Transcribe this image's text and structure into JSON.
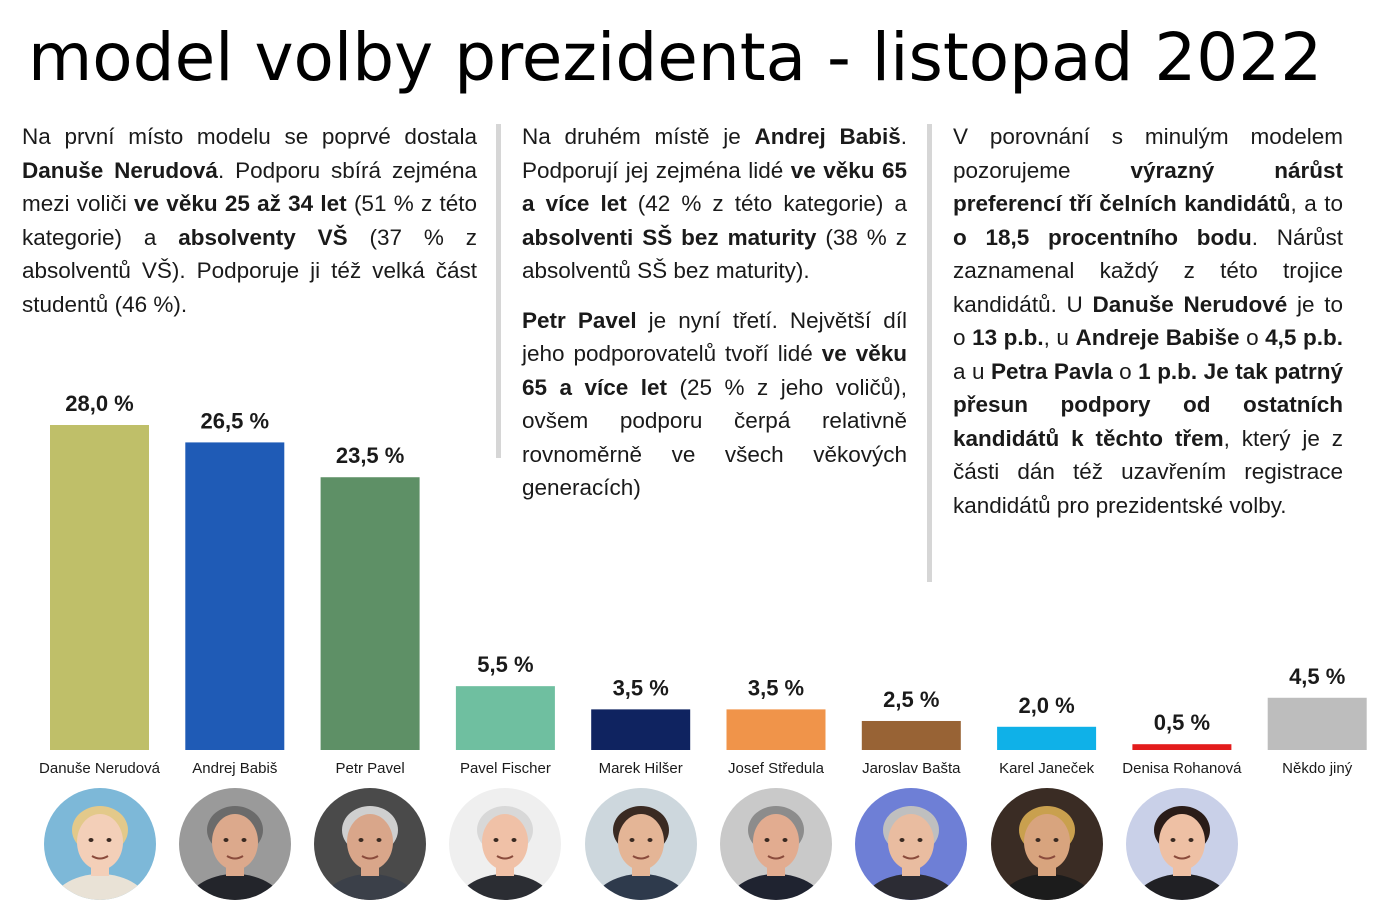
{
  "title": "model volby prezidenta - listopad 2022",
  "columns": [
    {
      "paragraphs": [
        [
          {
            "t": "Na první místo modelu se poprvé dostala ",
            "b": false
          },
          {
            "t": "Danuše Nerudová",
            "b": true
          },
          {
            "t": ". Podporu sbírá zejména mezi voliči ",
            "b": false
          },
          {
            "t": "ve věku 25 až 34 let",
            "b": true
          },
          {
            "t": " (51 % z této kategorie) a ",
            "b": false
          },
          {
            "t": "absolventy VŠ",
            "b": true
          },
          {
            "t": " (37 % z absolventů VŠ). Podporuje ji též velká část studentů (46 %).",
            "b": false
          }
        ]
      ]
    },
    {
      "paragraphs": [
        [
          {
            "t": "Na druhém místě je ",
            "b": false
          },
          {
            "t": "Andrej Babiš",
            "b": true
          },
          {
            "t": ". Podporují jej zejména lidé ",
            "b": false
          },
          {
            "t": "ve věku 65 a více let",
            "b": true
          },
          {
            "t": " (42 % z této kategorie) a ",
            "b": false
          },
          {
            "t": "absolventi SŠ bez maturity",
            "b": true
          },
          {
            "t": " (38 % z absolventů SŠ bez maturity).",
            "b": false
          }
        ],
        [
          {
            "t": "Petr Pavel",
            "b": true
          },
          {
            "t": " je nyní třetí. Největší díl jeho podporovatelů tvoří lidé ",
            "b": false
          },
          {
            "t": "ve věku 65 a více let",
            "b": true
          },
          {
            "t": " (25 % z jeho voličů), ovšem podporu čerpá relativně rovnoměrně ve všech věkových generacích)",
            "b": false
          }
        ]
      ]
    },
    {
      "paragraphs": [
        [
          {
            "t": "V porovnání s minulým modelem pozorujeme ",
            "b": false
          },
          {
            "t": "výrazný nárůst preferencí tří čelních kandidátů",
            "b": true
          },
          {
            "t": ", a to ",
            "b": false
          },
          {
            "t": "o 18,5 procentního bodu",
            "b": true
          },
          {
            "t": ". Nárůst zaznamenal každý z této trojice kandidátů. U ",
            "b": false
          },
          {
            "t": "Danuše Nerudové",
            "b": true
          },
          {
            "t": " je to o ",
            "b": false
          },
          {
            "t": "13 p.b.",
            "b": true
          },
          {
            "t": ", u ",
            "b": false
          },
          {
            "t": "Andreje Babiše",
            "b": true
          },
          {
            "t": " o ",
            "b": false
          },
          {
            "t": "4,5 p.b.",
            "b": true
          },
          {
            "t": " a u ",
            "b": false
          },
          {
            "t": "Petra Pavla",
            "b": true
          },
          {
            "t": " o ",
            "b": false
          },
          {
            "t": "1 p.b. Je tak patrný přesun podpory od ostatních kandidátů k těchto třem",
            "b": true
          },
          {
            "t": ", který je z části dán též uzavřením registrace kandidátů pro prezidentské volby.",
            "b": false
          }
        ]
      ]
    }
  ],
  "chart_data": {
    "type": "bar",
    "categories": [
      "Danuše Nerudová",
      "Andrej Babiš",
      "Petr Pavel",
      "Pavel Fischer",
      "Marek Hilšer",
      "Josef Středula",
      "Jaroslav Bašta",
      "Karel Janeček",
      "Denisa Rohanová",
      "Někdo jiný"
    ],
    "values": [
      28.0,
      26.5,
      23.5,
      5.5,
      3.5,
      3.5,
      2.5,
      2.0,
      0.5,
      4.5
    ],
    "labels": [
      "28,0 %",
      "26,5 %",
      "23,5 %",
      "5,5 %",
      "3,5 %",
      "3,5 %",
      "2,5 %",
      "2,0 %",
      "0,5 %",
      "4,5 %"
    ],
    "colors": [
      "#bfbf69",
      "#1f5bb6",
      "#5e9066",
      "#6fbfa0",
      "#0f2360",
      "#f0944a",
      "#986335",
      "#0fb1e8",
      "#e31c1c",
      "#bdbdbd"
    ],
    "ylim": [
      0,
      28
    ],
    "grid": false,
    "legend": "none"
  },
  "avatars": [
    {
      "name": "avatar-nerudova",
      "bg": "#7db8d8",
      "skin": "#f3cfb8",
      "hair": "#e3c98a",
      "shirt": "#e9e2d6"
    },
    {
      "name": "avatar-babis",
      "bg": "#9a9a9a",
      "skin": "#dca98c",
      "hair": "#6b6b6b",
      "shirt": "#23252b"
    },
    {
      "name": "avatar-pavel",
      "bg": "#4a4a4a",
      "skin": "#d9a68a",
      "hair": "#cfcfcf",
      "shirt": "#3b4049"
    },
    {
      "name": "avatar-fischer",
      "bg": "#efefef",
      "skin": "#f0c1a7",
      "hair": "#d8d8d8",
      "shirt": "#2b2d33"
    },
    {
      "name": "avatar-hilser",
      "bg": "#cdd7dd",
      "skin": "#e4b596",
      "hair": "#3a2a22",
      "shirt": "#2e3a4c"
    },
    {
      "name": "avatar-stredula",
      "bg": "#c9c9c9",
      "skin": "#e2ac90",
      "hair": "#8c8c8c",
      "shirt": "#1f2330"
    },
    {
      "name": "avatar-basta",
      "bg": "#6e7fd6",
      "skin": "#e9bca0",
      "hair": "#bfbfbf",
      "shirt": "#2c2c34"
    },
    {
      "name": "avatar-janecek",
      "bg": "#3a2c24",
      "skin": "#d8a47e",
      "hair": "#c9a04e",
      "shirt": "#1c1c1c"
    },
    {
      "name": "avatar-rohanova",
      "bg": "#c9d0e8",
      "skin": "#eec0a4",
      "hair": "#2a1c18",
      "shirt": "#202024"
    }
  ]
}
